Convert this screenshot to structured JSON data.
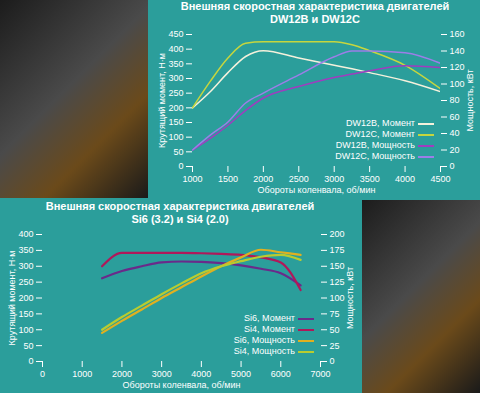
{
  "chart_data": [
    {
      "type": "line",
      "title": "Внешняя скоростная характеристика двигателей",
      "subtitle": "DW12B и DW12C",
      "xlabel": "Обороты коленвала, об/мин",
      "ylabel": "Крутящий момент, Н·м",
      "y2label": "Мощность, кВт",
      "x": [
        1000,
        1250,
        1500,
        1750,
        2000,
        2500,
        3000,
        3250,
        3500,
        4000,
        4500
      ],
      "xlim": [
        1000,
        4500
      ],
      "xticks": [
        1000,
        1500,
        2000,
        2500,
        3000,
        3500,
        4000,
        4500
      ],
      "ylim": [
        0,
        450
      ],
      "yticks": [
        0,
        50,
        100,
        150,
        200,
        250,
        300,
        350,
        400,
        450
      ],
      "y2lim": [
        0,
        160
      ],
      "y2ticks": [
        0,
        20,
        40,
        60,
        80,
        100,
        120,
        140,
        160
      ],
      "grid": false,
      "legend": "lower right",
      "series": [
        {
          "name": "DW12B, Момент",
          "color": "#f4f1dc",
          "values": [
            200,
            255,
            320,
            375,
            395,
            370,
            345,
            333,
            320,
            292,
            255
          ]
        },
        {
          "name": "DW12C, Момент",
          "color": "#c6d63e",
          "values": [
            200,
            290,
            370,
            420,
            425,
            425,
            425,
            415,
            395,
            345,
            265
          ]
        },
        {
          "name": "DW12B, Мощность",
          "color": "#a03cc0",
          "axis": "y2",
          "values": [
            20,
            34,
            50,
            68,
            83,
            97,
            108,
            112,
            116,
            122,
            120
          ]
        },
        {
          "name": "DW12C, Мощность",
          "color": "#9c7ee8",
          "axis": "y2",
          "values": [
            20,
            38,
            54,
            77,
            89,
            111,
            133,
            140,
            140,
            138,
            125
          ]
        }
      ]
    },
    {
      "type": "line",
      "title": "Внешняя скоростная характеристика двигателей",
      "subtitle": "Si6 (3.2) и Si4 (2.0)",
      "xlabel": "Обороты коленвала, об/мин",
      "ylabel": "Крутящий момент, Н·м",
      "y2label": "Мощность, кВт",
      "x": [
        1500,
        2000,
        2500,
        3000,
        3500,
        4000,
        4500,
        5000,
        5500,
        6000,
        6500
      ],
      "xlim": [
        0,
        7000
      ],
      "xticks": [
        0,
        1000,
        2000,
        3000,
        4000,
        5000,
        6000,
        7000
      ],
      "ylim": [
        0,
        400
      ],
      "yticks": [
        0,
        50,
        100,
        150,
        200,
        250,
        300,
        350,
        400
      ],
      "y2lim": [
        0,
        200
      ],
      "y2ticks": [
        0,
        25,
        50,
        75,
        100,
        125,
        150,
        175,
        200
      ],
      "grid": false,
      "legend": "lower right",
      "series": [
        {
          "name": "Si6, Момент",
          "color": "#6a2a8a",
          "values": [
            262,
            285,
            300,
            312,
            315,
            314,
            310,
            303,
            292,
            278,
            240
          ]
        },
        {
          "name": "Si4, Момент",
          "color": "#b0185a",
          "values": [
            300,
            342,
            342,
            342,
            342,
            341,
            339,
            336,
            328,
            312,
            225
          ]
        },
        {
          "name": "Si6, Мощность",
          "color": "#e0b020",
          "axis": "y2",
          "values": [
            45,
            64,
            82,
            100,
            117,
            134,
            150,
            164,
            176,
            172,
            168
          ]
        },
        {
          "name": "Si4, Мощность",
          "color": "#b8cc30",
          "axis": "y2",
          "values": [
            50,
            70,
            88,
            106,
            123,
            139,
            150,
            158,
            165,
            168,
            160
          ]
        }
      ]
    }
  ]
}
